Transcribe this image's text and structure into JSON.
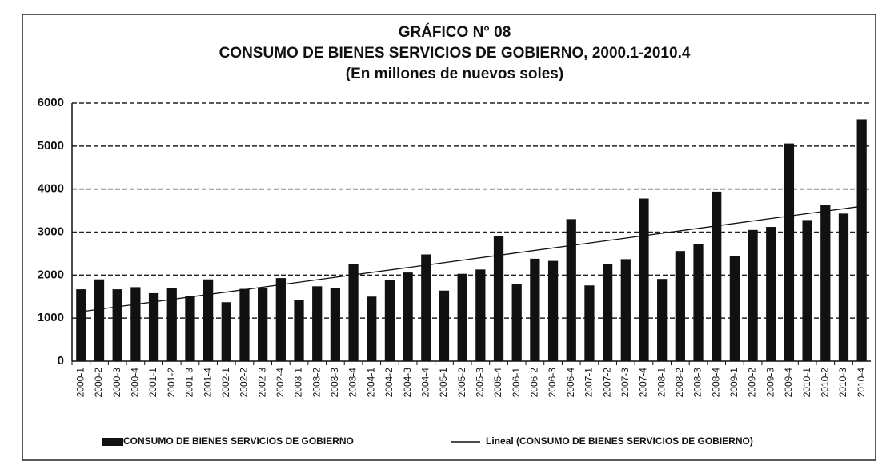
{
  "chart_data": {
    "type": "bar",
    "title": [
      "GRÁFICO N° 08",
      "CONSUMO DE BIENES SERVICIOS DE GOBIERNO, 2000.1-2010.4",
      "(En millones de nuevos soles)"
    ],
    "categories": [
      "2000-1",
      "2000-2",
      "2000-3",
      "2000-4",
      "2001-1",
      "2001-2",
      "2001-3",
      "2001-4",
      "2002-1",
      "2002-2",
      "2002-3",
      "2002-4",
      "2003-1",
      "2003-2",
      "2003-3",
      "2003-4",
      "2004-1",
      "2004-2",
      "2004-3",
      "2004-4",
      "2005-1",
      "2005-2",
      "2005-3",
      "2005-4",
      "2006-1",
      "2006-2",
      "2006-3",
      "2006-4",
      "2007-1",
      "2007-2",
      "2007-3",
      "2007-4",
      "2008-1",
      "2008-2",
      "2008-3",
      "2008-4",
      "2009-1",
      "2009-2",
      "2009-3",
      "2009-4",
      "2010-1",
      "2010-2",
      "2010-3",
      "2010-4"
    ],
    "series": [
      {
        "name": "CONSUMO DE BIENES SERVICIOS DE GOBIERNO",
        "color": "#111111",
        "values": [
          1670,
          1900,
          1670,
          1720,
          1580,
          1700,
          1520,
          1900,
          1370,
          1680,
          1700,
          1930,
          1420,
          1740,
          1700,
          2250,
          1500,
          1880,
          2060,
          2480,
          1640,
          2030,
          2130,
          2900,
          1790,
          2380,
          2330,
          3300,
          1760,
          2250,
          2370,
          3780,
          1910,
          2560,
          2720,
          3940,
          2440,
          3050,
          3120,
          5060,
          3280,
          3640,
          3430,
          5620
        ]
      }
    ],
    "trendline": {
      "name": "Lineal (CONSUMO DE BIENES SERVICIOS DE GOBIERNO)",
      "color": "#111111",
      "start": 1150,
      "end": 3600
    },
    "ylim": [
      0,
      6000
    ],
    "yticks": [
      0,
      1000,
      2000,
      3000,
      4000,
      5000,
      6000
    ],
    "grid": true
  }
}
